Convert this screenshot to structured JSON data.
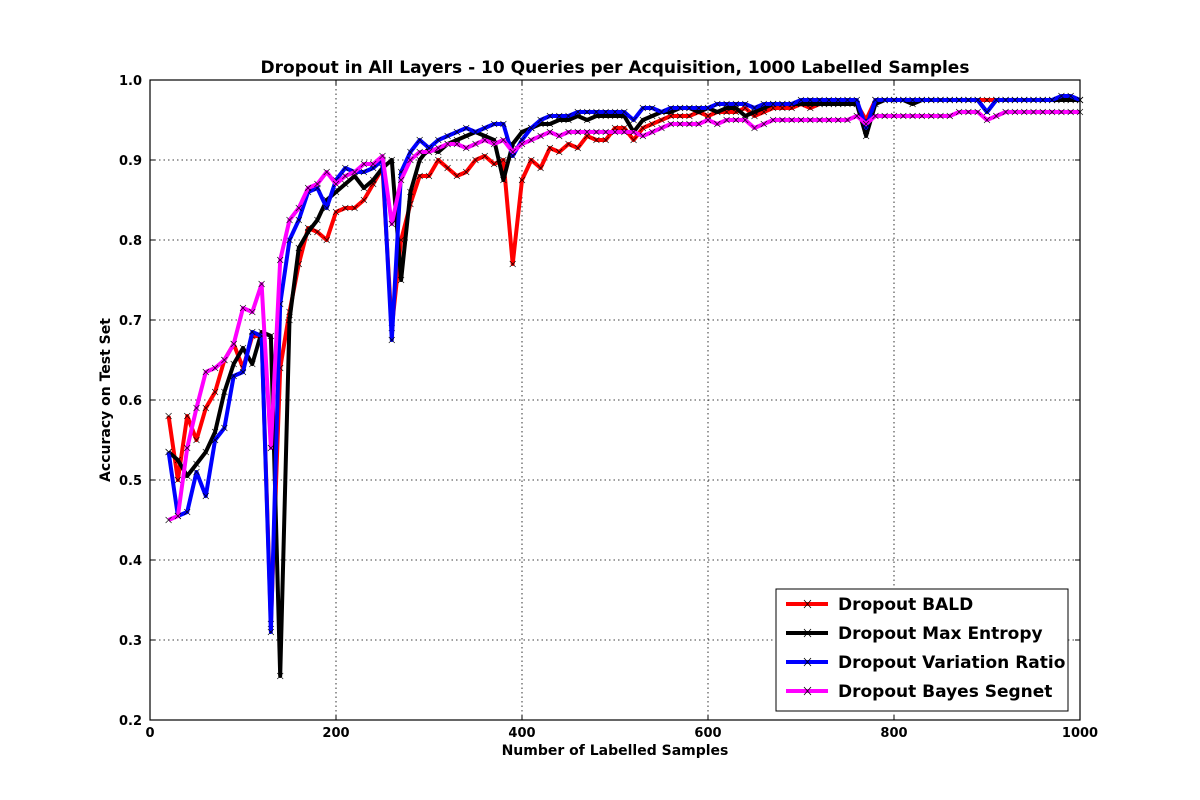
{
  "chart_data": {
    "type": "line",
    "title": "Dropout in All Layers - 10 Queries per Acquisition, 1000 Labelled Samples",
    "xlabel": "Number of Labelled Samples",
    "ylabel": "Accuracy on Test Set",
    "xlim": [
      0,
      1000
    ],
    "ylim": [
      0.2,
      1.0
    ],
    "xticks": [
      0,
      200,
      400,
      600,
      800,
      1000
    ],
    "yticks": [
      0.2,
      0.3,
      0.4,
      0.5,
      0.6,
      0.7,
      0.8,
      0.9,
      1.0
    ],
    "grid": true,
    "legend_position": "lower-right",
    "x": [
      20,
      30,
      40,
      50,
      60,
      70,
      80,
      90,
      100,
      110,
      120,
      130,
      140,
      150,
      160,
      170,
      180,
      190,
      200,
      210,
      220,
      230,
      240,
      250,
      260,
      270,
      280,
      290,
      300,
      310,
      320,
      330,
      340,
      350,
      360,
      370,
      380,
      390,
      400,
      410,
      420,
      430,
      440,
      450,
      460,
      470,
      480,
      490,
      500,
      510,
      520,
      530,
      540,
      550,
      560,
      570,
      580,
      590,
      600,
      610,
      620,
      630,
      640,
      650,
      660,
      670,
      680,
      690,
      700,
      710,
      720,
      730,
      740,
      750,
      760,
      770,
      780,
      790,
      800,
      810,
      820,
      830,
      840,
      850,
      860,
      870,
      880,
      890,
      900,
      910,
      920,
      930,
      940,
      950,
      960,
      970,
      980,
      990,
      1000
    ],
    "series": [
      {
        "name": "Dropout BALD",
        "color": "#ff0000",
        "values": [
          0.58,
          0.5,
          0.58,
          0.55,
          0.59,
          0.61,
          0.65,
          0.67,
          0.64,
          0.68,
          0.68,
          0.32,
          0.64,
          0.71,
          0.77,
          0.815,
          0.81,
          0.8,
          0.835,
          0.84,
          0.84,
          0.85,
          0.87,
          0.89,
          0.69,
          0.8,
          0.845,
          0.88,
          0.88,
          0.9,
          0.89,
          0.88,
          0.885,
          0.9,
          0.905,
          0.895,
          0.9,
          0.77,
          0.875,
          0.9,
          0.89,
          0.915,
          0.91,
          0.92,
          0.915,
          0.93,
          0.925,
          0.925,
          0.94,
          0.94,
          0.925,
          0.94,
          0.945,
          0.95,
          0.955,
          0.955,
          0.955,
          0.96,
          0.955,
          0.96,
          0.96,
          0.96,
          0.965,
          0.955,
          0.96,
          0.965,
          0.965,
          0.965,
          0.97,
          0.965,
          0.97,
          0.97,
          0.97,
          0.975,
          0.97,
          0.95,
          0.975,
          0.975,
          0.975,
          0.975,
          0.975,
          0.975,
          0.975,
          0.975,
          0.975,
          0.975,
          0.975,
          0.975,
          0.975,
          0.975,
          0.975,
          0.975,
          0.975,
          0.975,
          0.975,
          0.975,
          0.975,
          0.975,
          0.975
        ]
      },
      {
        "name": "Dropout Max Entropy",
        "color": "#000000",
        "values": [
          0.535,
          0.525,
          0.505,
          0.52,
          0.535,
          0.56,
          0.61,
          0.645,
          0.665,
          0.645,
          0.685,
          0.68,
          0.255,
          0.7,
          0.79,
          0.81,
          0.825,
          0.85,
          0.86,
          0.87,
          0.88,
          0.865,
          0.875,
          0.89,
          0.9,
          0.75,
          0.86,
          0.9,
          0.915,
          0.91,
          0.92,
          0.925,
          0.93,
          0.935,
          0.93,
          0.925,
          0.875,
          0.92,
          0.935,
          0.94,
          0.945,
          0.945,
          0.95,
          0.95,
          0.955,
          0.95,
          0.955,
          0.955,
          0.955,
          0.955,
          0.935,
          0.95,
          0.955,
          0.96,
          0.96,
          0.965,
          0.965,
          0.96,
          0.965,
          0.96,
          0.965,
          0.965,
          0.955,
          0.96,
          0.965,
          0.97,
          0.97,
          0.97,
          0.97,
          0.97,
          0.97,
          0.97,
          0.97,
          0.97,
          0.97,
          0.93,
          0.97,
          0.975,
          0.975,
          0.975,
          0.97,
          0.975,
          0.975,
          0.975,
          0.975,
          0.975,
          0.975,
          0.975,
          0.96,
          0.975,
          0.975,
          0.975,
          0.975,
          0.975,
          0.975,
          0.975,
          0.975,
          0.975,
          0.975
        ]
      },
      {
        "name": "Dropout Variation Ratio",
        "color": "#0000ff",
        "values": [
          0.535,
          0.455,
          0.46,
          0.51,
          0.48,
          0.55,
          0.565,
          0.63,
          0.635,
          0.685,
          0.68,
          0.31,
          0.72,
          0.8,
          0.825,
          0.86,
          0.865,
          0.84,
          0.875,
          0.89,
          0.885,
          0.885,
          0.89,
          0.9,
          0.675,
          0.885,
          0.91,
          0.925,
          0.915,
          0.925,
          0.93,
          0.935,
          0.94,
          0.935,
          0.94,
          0.945,
          0.945,
          0.905,
          0.925,
          0.94,
          0.95,
          0.955,
          0.955,
          0.955,
          0.96,
          0.96,
          0.96,
          0.96,
          0.96,
          0.96,
          0.95,
          0.965,
          0.965,
          0.96,
          0.965,
          0.965,
          0.965,
          0.965,
          0.965,
          0.97,
          0.97,
          0.97,
          0.97,
          0.965,
          0.97,
          0.97,
          0.97,
          0.97,
          0.975,
          0.975,
          0.975,
          0.975,
          0.975,
          0.975,
          0.975,
          0.94,
          0.975,
          0.975,
          0.975,
          0.975,
          0.975,
          0.975,
          0.975,
          0.975,
          0.975,
          0.975,
          0.975,
          0.975,
          0.96,
          0.975,
          0.975,
          0.975,
          0.975,
          0.975,
          0.975,
          0.975,
          0.98,
          0.98,
          0.975
        ]
      },
      {
        "name": "Dropout Bayes Segnet",
        "color": "#ff00ff",
        "values": [
          0.45,
          0.455,
          0.54,
          0.59,
          0.635,
          0.64,
          0.65,
          0.67,
          0.715,
          0.71,
          0.745,
          0.54,
          0.775,
          0.825,
          0.84,
          0.865,
          0.87,
          0.885,
          0.87,
          0.88,
          0.885,
          0.895,
          0.895,
          0.905,
          0.82,
          0.875,
          0.9,
          0.91,
          0.91,
          0.915,
          0.92,
          0.92,
          0.915,
          0.92,
          0.925,
          0.92,
          0.925,
          0.91,
          0.92,
          0.925,
          0.93,
          0.935,
          0.93,
          0.935,
          0.935,
          0.935,
          0.935,
          0.935,
          0.935,
          0.935,
          0.935,
          0.93,
          0.935,
          0.94,
          0.945,
          0.945,
          0.945,
          0.945,
          0.95,
          0.945,
          0.95,
          0.95,
          0.95,
          0.94,
          0.945,
          0.95,
          0.95,
          0.95,
          0.95,
          0.95,
          0.95,
          0.95,
          0.95,
          0.95,
          0.955,
          0.945,
          0.955,
          0.955,
          0.955,
          0.955,
          0.955,
          0.955,
          0.955,
          0.955,
          0.955,
          0.96,
          0.96,
          0.96,
          0.95,
          0.955,
          0.96,
          0.96,
          0.96,
          0.96,
          0.96,
          0.96,
          0.96,
          0.96,
          0.96
        ]
      }
    ]
  }
}
